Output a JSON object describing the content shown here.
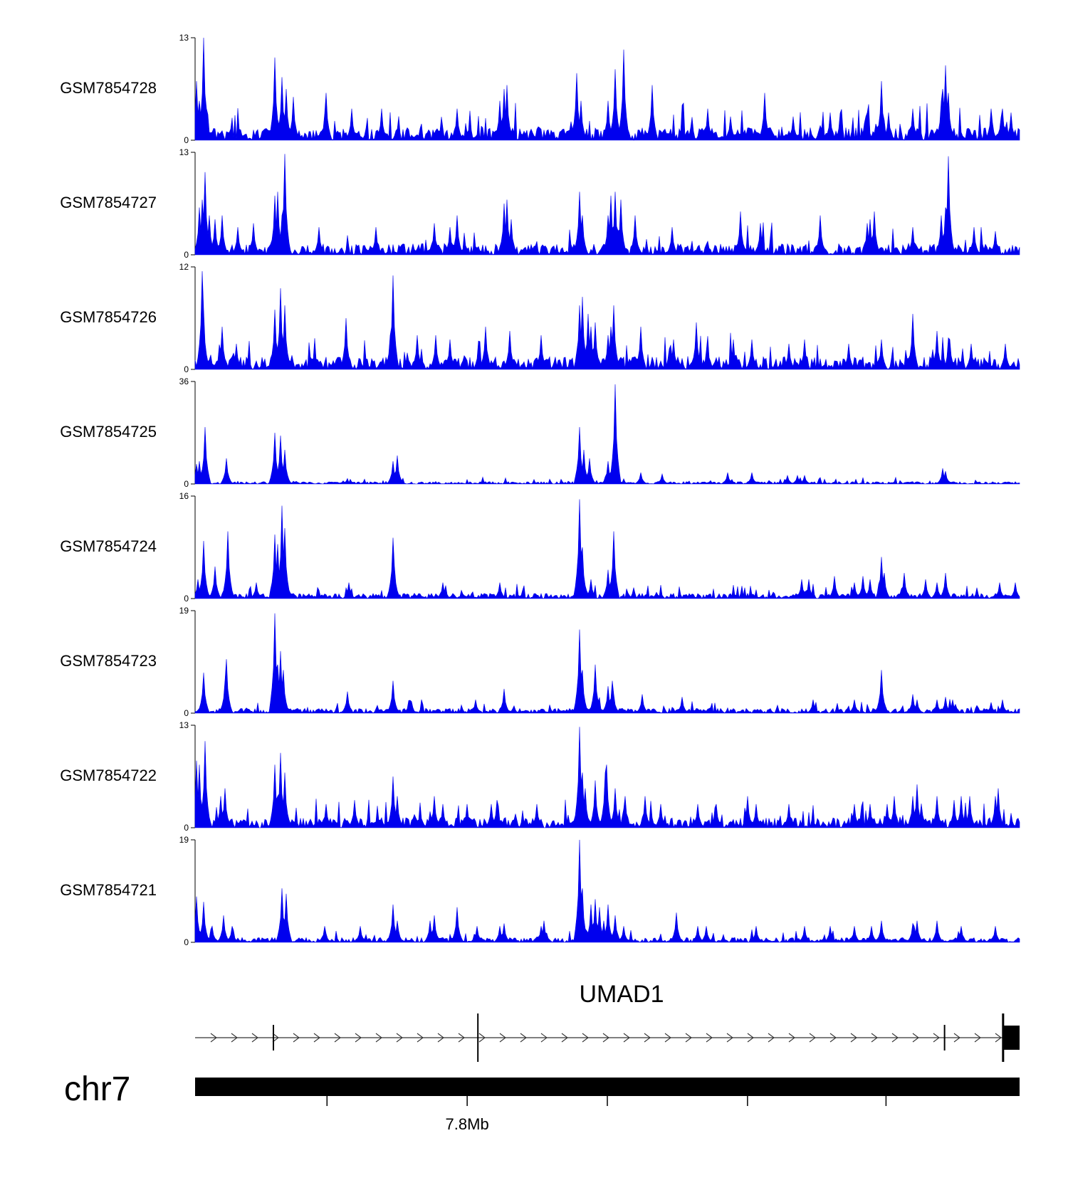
{
  "chart_data": {
    "type": "area",
    "title": "",
    "xlabel": "",
    "ylabel": "",
    "color": "#0000ee",
    "tracks": [
      {
        "name": "GSM7854728",
        "ymax": 13,
        "seed": 28,
        "base": 1.6,
        "peaks": [
          [
            0.002,
            7.5
          ],
          [
            0.005,
            5
          ],
          [
            0.011,
            13
          ],
          [
            0.014,
            4
          ],
          [
            0.097,
            10.5
          ],
          [
            0.105,
            8
          ],
          [
            0.111,
            6.5
          ],
          [
            0.119,
            5.5
          ],
          [
            0.159,
            6
          ],
          [
            0.19,
            4
          ],
          [
            0.227,
            4
          ],
          [
            0.318,
            4
          ],
          [
            0.37,
            5
          ],
          [
            0.375,
            6.5
          ],
          [
            0.378,
            7
          ],
          [
            0.463,
            8.5
          ],
          [
            0.468,
            5
          ],
          [
            0.509,
            9
          ],
          [
            0.5,
            5
          ],
          [
            0.519,
            11.5
          ],
          [
            0.555,
            7
          ],
          [
            0.622,
            4
          ],
          [
            0.649,
            3
          ],
          [
            0.69,
            6
          ],
          [
            0.726,
            3
          ],
          [
            0.77,
            3.5
          ],
          [
            0.814,
            3
          ],
          [
            0.816,
            3.5
          ],
          [
            0.832,
            7.5
          ],
          [
            0.841,
            3.5
          ],
          [
            0.87,
            4
          ],
          [
            0.905,
            5
          ],
          [
            0.906,
            6.5
          ],
          [
            0.91,
            9.5
          ],
          [
            0.914,
            6
          ],
          [
            0.965,
            4
          ],
          [
            0.98,
            4
          ],
          [
            0.99,
            3.5
          ]
        ]
      },
      {
        "name": "GSM7854727",
        "ymax": 13,
        "seed": 27,
        "base": 1.4,
        "peaks": [
          [
            0.005,
            6
          ],
          [
            0.008,
            7
          ],
          [
            0.012,
            10.5
          ],
          [
            0.017,
            5
          ],
          [
            0.025,
            4.5
          ],
          [
            0.032,
            5
          ],
          [
            0.051,
            3.5
          ],
          [
            0.07,
            4
          ],
          [
            0.096,
            7.5
          ],
          [
            0.1,
            8
          ],
          [
            0.105,
            5
          ],
          [
            0.109,
            12.8
          ],
          [
            0.15,
            3.5
          ],
          [
            0.22,
            3.5
          ],
          [
            0.29,
            4
          ],
          [
            0.31,
            3.5
          ],
          [
            0.318,
            5
          ],
          [
            0.375,
            6.5
          ],
          [
            0.378,
            7
          ],
          [
            0.384,
            4.5
          ],
          [
            0.466,
            8
          ],
          [
            0.469,
            5
          ],
          [
            0.5,
            5
          ],
          [
            0.504,
            7.5
          ],
          [
            0.51,
            8
          ],
          [
            0.516,
            7
          ],
          [
            0.534,
            5
          ],
          [
            0.578,
            3.5
          ],
          [
            0.661,
            5.5
          ],
          [
            0.685,
            4
          ],
          [
            0.758,
            5
          ],
          [
            0.816,
            4
          ],
          [
            0.818,
            4.5
          ],
          [
            0.823,
            5.5
          ],
          [
            0.87,
            3.5
          ],
          [
            0.905,
            5
          ],
          [
            0.91,
            6
          ],
          [
            0.913,
            4.5
          ],
          [
            0.913,
            12.5
          ],
          [
            0.945,
            3.5
          ],
          [
            0.97,
            3
          ]
        ]
      },
      {
        "name": "GSM7854726",
        "ymax": 12,
        "seed": 26,
        "base": 1.5,
        "peaks": [
          [
            0.008,
            11.5
          ],
          [
            0.011,
            7
          ],
          [
            0.032,
            5
          ],
          [
            0.05,
            3
          ],
          [
            0.096,
            7
          ],
          [
            0.104,
            9.5
          ],
          [
            0.108,
            7.5
          ],
          [
            0.183,
            6
          ],
          [
            0.24,
            11
          ],
          [
            0.236,
            4
          ],
          [
            0.27,
            4
          ],
          [
            0.292,
            4
          ],
          [
            0.31,
            3.5
          ],
          [
            0.352,
            5
          ],
          [
            0.382,
            4.5
          ],
          [
            0.42,
            4
          ],
          [
            0.466,
            7.5
          ],
          [
            0.47,
            8.5
          ],
          [
            0.476,
            6.5
          ],
          [
            0.48,
            5
          ],
          [
            0.485,
            5.5
          ],
          [
            0.5,
            4
          ],
          [
            0.505,
            5
          ],
          [
            0.508,
            7.5
          ],
          [
            0.54,
            5
          ],
          [
            0.58,
            3.5
          ],
          [
            0.608,
            5.5
          ],
          [
            0.622,
            3
          ],
          [
            0.652,
            3.5
          ],
          [
            0.676,
            3.5
          ],
          [
            0.72,
            3
          ],
          [
            0.74,
            3.5
          ],
          [
            0.792,
            3
          ],
          [
            0.832,
            3.5
          ],
          [
            0.87,
            3
          ],
          [
            0.87,
            6.5
          ],
          [
            0.9,
            4.5
          ],
          [
            0.916,
            3.5
          ],
          [
            0.942,
            3
          ],
          [
            0.982,
            3
          ]
        ]
      },
      {
        "name": "GSM7854725",
        "ymax": 36,
        "seed": 25,
        "base": 0.8,
        "peaks": [
          [
            0.002,
            7
          ],
          [
            0.006,
            8
          ],
          [
            0.012,
            20
          ],
          [
            0.038,
            9
          ],
          [
            0.096,
            18
          ],
          [
            0.104,
            17
          ],
          [
            0.108,
            12
          ],
          [
            0.24,
            8
          ],
          [
            0.245,
            10
          ],
          [
            0.466,
            20
          ],
          [
            0.472,
            12
          ],
          [
            0.478,
            9
          ],
          [
            0.5,
            8
          ],
          [
            0.507,
            14
          ],
          [
            0.509,
            35
          ],
          [
            0.541,
            4
          ],
          [
            0.566,
            3.5
          ],
          [
            0.646,
            4
          ],
          [
            0.676,
            4
          ],
          [
            0.718,
            3
          ],
          [
            0.73,
            3
          ],
          [
            0.74,
            3
          ],
          [
            0.906,
            5.5
          ],
          [
            0.91,
            4.5
          ]
        ]
      },
      {
        "name": "GSM7854724",
        "ymax": 16,
        "seed": 24,
        "base": 0.8,
        "peaks": [
          [
            0.004,
            3
          ],
          [
            0.011,
            9
          ],
          [
            0.025,
            5
          ],
          [
            0.039,
            10.5
          ],
          [
            0.074,
            2.5
          ],
          [
            0.097,
            10
          ],
          [
            0.1,
            8.5
          ],
          [
            0.105,
            14.5
          ],
          [
            0.108,
            11
          ],
          [
            0.186,
            2.5
          ],
          [
            0.242,
            5
          ],
          [
            0.24,
            9.5
          ],
          [
            0.3,
            2.5
          ],
          [
            0.37,
            2.5
          ],
          [
            0.466,
            15.5
          ],
          [
            0.47,
            8
          ],
          [
            0.48,
            3
          ],
          [
            0.5,
            4.5
          ],
          [
            0.508,
            10.5
          ],
          [
            0.735,
            3
          ],
          [
            0.745,
            3
          ],
          [
            0.775,
            3.5
          ],
          [
            0.81,
            3.5
          ],
          [
            0.818,
            3
          ],
          [
            0.8,
            2.5
          ],
          [
            0.832,
            6.5
          ],
          [
            0.836,
            4
          ],
          [
            0.86,
            4
          ],
          [
            0.886,
            3
          ],
          [
            0.91,
            4
          ],
          [
            0.9,
            2.5
          ],
          [
            0.975,
            2.5
          ],
          [
            0.995,
            2.5
          ]
        ]
      },
      {
        "name": "GSM7854723",
        "ymax": 19,
        "seed": 23,
        "base": 0.9,
        "peaks": [
          [
            0.008,
            3.5
          ],
          [
            0.011,
            7.5
          ],
          [
            0.036,
            6
          ],
          [
            0.038,
            10
          ],
          [
            0.097,
            18.5
          ],
          [
            0.1,
            9
          ],
          [
            0.104,
            11.5
          ],
          [
            0.107,
            8
          ],
          [
            0.185,
            4
          ],
          [
            0.24,
            5
          ],
          [
            0.24,
            6
          ],
          [
            0.34,
            2.5
          ],
          [
            0.375,
            4.5
          ],
          [
            0.466,
            15.5
          ],
          [
            0.47,
            8
          ],
          [
            0.486,
            9
          ],
          [
            0.5,
            5
          ],
          [
            0.506,
            6
          ],
          [
            0.508,
            3.5
          ],
          [
            0.542,
            3.5
          ],
          [
            0.59,
            3
          ],
          [
            0.75,
            2.5
          ],
          [
            0.8,
            2.5
          ],
          [
            0.832,
            8
          ],
          [
            0.87,
            3.5
          ],
          [
            0.875,
            2.5
          ],
          [
            0.9,
            2.5
          ],
          [
            0.91,
            3
          ],
          [
            0.918,
            2.5
          ],
          [
            0.965,
            2
          ],
          [
            0.98,
            2.5
          ]
        ]
      },
      {
        "name": "GSM7854722",
        "ymax": 13,
        "seed": 22,
        "base": 1.3,
        "peaks": [
          [
            0.002,
            8.5
          ],
          [
            0.006,
            8
          ],
          [
            0.012,
            11
          ],
          [
            0.031,
            4
          ],
          [
            0.037,
            5
          ],
          [
            0.096,
            8
          ],
          [
            0.1,
            4
          ],
          [
            0.104,
            9.5
          ],
          [
            0.108,
            7
          ],
          [
            0.159,
            3
          ],
          [
            0.193,
            3.5
          ],
          [
            0.24,
            6.5
          ],
          [
            0.245,
            4
          ],
          [
            0.29,
            4
          ],
          [
            0.3,
            3
          ],
          [
            0.33,
            3
          ],
          [
            0.36,
            3
          ],
          [
            0.366,
            3.5
          ],
          [
            0.415,
            3
          ],
          [
            0.466,
            12.8
          ],
          [
            0.47,
            7
          ],
          [
            0.474,
            5
          ],
          [
            0.486,
            6
          ],
          [
            0.498,
            7
          ],
          [
            0.499,
            8
          ],
          [
            0.51,
            5
          ],
          [
            0.522,
            4
          ],
          [
            0.546,
            4
          ],
          [
            0.565,
            3
          ],
          [
            0.61,
            3
          ],
          [
            0.632,
            3
          ],
          [
            0.67,
            4
          ],
          [
            0.68,
            3
          ],
          [
            0.72,
            3
          ],
          [
            0.8,
            3
          ],
          [
            0.818,
            3
          ],
          [
            0.84,
            3
          ],
          [
            0.848,
            4
          ],
          [
            0.87,
            4
          ],
          [
            0.875,
            5.5
          ],
          [
            0.9,
            4
          ],
          [
            0.9,
            3.5
          ],
          [
            0.92,
            3.5
          ],
          [
            0.93,
            4
          ],
          [
            0.94,
            4
          ],
          [
            0.97,
            4
          ],
          [
            0.974,
            5
          ]
        ]
      },
      {
        "name": "GSM7854721",
        "ymax": 19,
        "seed": 21,
        "base": 0.9,
        "peaks": [
          [
            0.002,
            8.5
          ],
          [
            0.011,
            7.5
          ],
          [
            0.021,
            3
          ],
          [
            0.034,
            5
          ],
          [
            0.045,
            3
          ],
          [
            0.106,
            10
          ],
          [
            0.11,
            9
          ],
          [
            0.158,
            3
          ],
          [
            0.2,
            3
          ],
          [
            0.24,
            7
          ],
          [
            0.245,
            4
          ],
          [
            0.285,
            4
          ],
          [
            0.29,
            5
          ],
          [
            0.318,
            6.5
          ],
          [
            0.342,
            3
          ],
          [
            0.37,
            3
          ],
          [
            0.375,
            3.5
          ],
          [
            0.42,
            3
          ],
          [
            0.424,
            4
          ],
          [
            0.466,
            19
          ],
          [
            0.47,
            10
          ],
          [
            0.48,
            7
          ],
          [
            0.486,
            8
          ],
          [
            0.49,
            6.5
          ],
          [
            0.496,
            4
          ],
          [
            0.5,
            7
          ],
          [
            0.51,
            5
          ],
          [
            0.52,
            3
          ],
          [
            0.584,
            5.5
          ],
          [
            0.61,
            3
          ],
          [
            0.62,
            3
          ],
          [
            0.68,
            3
          ],
          [
            0.74,
            3
          ],
          [
            0.77,
            3
          ],
          [
            0.8,
            3
          ],
          [
            0.82,
            3
          ],
          [
            0.833,
            4
          ],
          [
            0.87,
            3.5
          ],
          [
            0.872,
            3
          ],
          [
            0.875,
            4
          ],
          [
            0.9,
            4
          ],
          [
            0.93,
            3
          ],
          [
            0.97,
            3
          ]
        ]
      }
    ],
    "gene": {
      "name": "UMAD1",
      "intron_ticks": [
        0.095,
        0.343,
        0.909
      ],
      "exon": [
        0.98,
        1.0
      ]
    },
    "chromosome": {
      "name": "chr7",
      "tick_positions": [
        0.16,
        0.33,
        0.5,
        0.67,
        0.838
      ],
      "tick_label": "7.8Mb",
      "tick_label_index": 1
    }
  }
}
